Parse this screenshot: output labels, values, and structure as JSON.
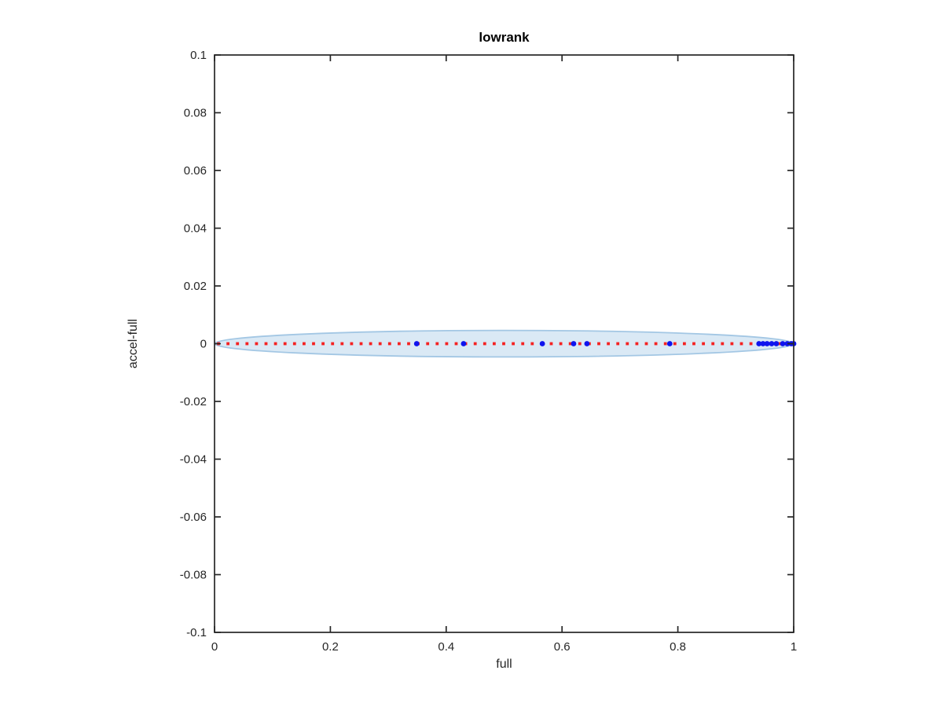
{
  "figure": {
    "title": "lowrank",
    "xlabel": "full",
    "ylabel": "accel-full"
  },
  "chart_data": {
    "type": "scatter",
    "title": "lowrank",
    "xlabel": "full",
    "ylabel": "accel-full",
    "xlim": [
      0,
      1
    ],
    "ylim": [
      -0.1,
      0.1
    ],
    "x_ticks": [
      0,
      0.2,
      0.4,
      0.6,
      0.8,
      1
    ],
    "x_tick_labels": [
      "0",
      "0.2",
      "0.4",
      "0.6",
      "0.8",
      "1"
    ],
    "y_ticks": [
      -0.1,
      -0.08,
      -0.06,
      -0.04,
      -0.02,
      0,
      0.02,
      0.04,
      0.06,
      0.08,
      0.1
    ],
    "y_tick_labels": [
      "-0.1",
      "-0.08",
      "-0.06",
      "-0.04",
      "-0.02",
      "0",
      "0.02",
      "0.04",
      "0.06",
      "0.08",
      "0.1"
    ],
    "grid": false,
    "box": true,
    "legend": null,
    "axis_color": "#262626",
    "band": {
      "shape": "ellipse",
      "center_x": 0.5,
      "center_y": 0,
      "rx": 0.5,
      "ry": 0.0046,
      "fill_color": "#dae9f5",
      "edge_color": "#a3c7e4"
    },
    "reference_line": {
      "y": 0,
      "x_range": [
        0,
        1
      ],
      "style": "dotted",
      "color": "#f52222"
    },
    "scatter": {
      "marker": "circle",
      "color": "#0f14ee",
      "y": 0,
      "x": [
        0.349,
        0.43,
        0.566,
        0.62,
        0.643,
        0.786,
        0.94,
        0.947,
        0.954,
        0.962,
        0.97,
        0.981,
        0.989,
        0.996,
        1.0
      ]
    }
  }
}
